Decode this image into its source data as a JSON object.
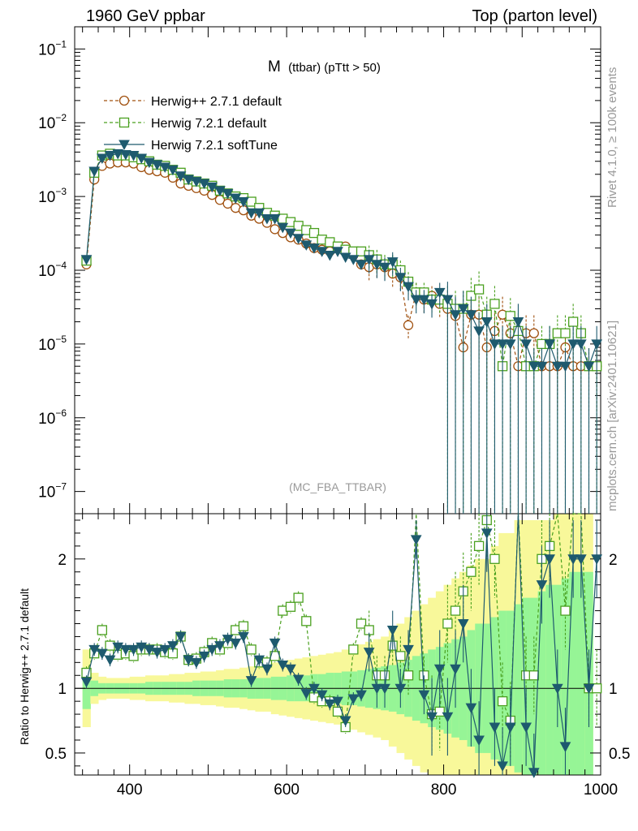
{
  "header": {
    "energy_label": "1960 GeV ppbar",
    "process_label": "Top (parton level)",
    "rivet_label": "Rivet 4.1.0, ≥ 100k events",
    "mcplots_label": "mcplots.cern.ch [arXiv:2401.10621]"
  },
  "colors": {
    "herwigpp": "#a0500f",
    "herwig721": "#4aa01f",
    "softtune": "#1e5a6e",
    "band_outer": "#f8f89a",
    "band_inner": "#96f596"
  },
  "chart_data": [
    {
      "type": "line",
      "panel": "main",
      "title_main": "M",
      "title_rest": "(ttbar) (pTtt > 50)",
      "watermark": "(MC_FBA_TTBAR)",
      "xlim": [
        330,
        1000
      ],
      "ylim": [
        5e-08,
        0.2
      ],
      "yscale": "log",
      "yticks": [
        {
          "value": 0.1,
          "mant": "10",
          "exp": "−1"
        },
        {
          "value": 0.01,
          "mant": "10",
          "exp": "−2"
        },
        {
          "value": 0.001,
          "mant": "10",
          "exp": "−3"
        },
        {
          "value": 0.0001,
          "mant": "10",
          "exp": "−4"
        },
        {
          "value": 1e-05,
          "mant": "10",
          "exp": "−5"
        },
        {
          "value": 1e-06,
          "mant": "10",
          "exp": "−6"
        },
        {
          "value": 1e-07,
          "mant": "10",
          "exp": "−7"
        }
      ],
      "x": [
        345,
        355,
        365,
        375,
        385,
        395,
        405,
        415,
        425,
        435,
        445,
        455,
        465,
        475,
        485,
        495,
        505,
        515,
        525,
        535,
        545,
        555,
        565,
        575,
        585,
        595,
        605,
        615,
        625,
        635,
        645,
        655,
        665,
        675,
        685,
        695,
        705,
        715,
        725,
        735,
        745,
        755,
        765,
        775,
        785,
        795,
        805,
        815,
        825,
        835,
        845,
        855,
        865,
        875,
        885,
        895,
        905,
        915,
        925,
        935,
        945,
        955,
        965,
        975,
        985,
        995
      ],
      "series": [
        {
          "name": "Herwig++ 2.7.1 default",
          "marker": "circle",
          "values": [
            0.00012,
            0.0017,
            0.0026,
            0.0028,
            0.0029,
            0.0029,
            0.0028,
            0.0025,
            0.0023,
            0.0022,
            0.0021,
            0.0018,
            0.0015,
            0.0014,
            0.0013,
            0.0012,
            0.00105,
            0.0009,
            0.0008,
            0.0007,
            0.00065,
            0.00055,
            0.0005,
            0.00044,
            0.00036,
            0.00032,
            0.00028,
            0.00026,
            0.00023,
            0.0002,
            0.00019,
            0.00018,
            0.0002,
            0.00021,
            0.00016,
            0.00012,
            0.00011,
            0.00012,
            0.00011,
            9e-05,
            8e-05,
            1.8e-05,
            5e-05,
            4e-05,
            4.5e-05,
            3.5e-05,
            3e-05,
            2.4e-05,
            9e-06,
            2.5e-05,
            2.5e-05,
            9e-06,
            1.5e-05,
            2.5e-05,
            1.4e-05,
            5e-06,
            1.4e-05,
            1.4e-05,
            5e-06,
            5e-06,
            5e-06,
            9e-06,
            5e-06,
            5e-06,
            5e-06,
            5e-06
          ]
        },
        {
          "name": "Herwig 7.2.1 default",
          "marker": "square",
          "values": [
            0.000135,
            0.0021,
            0.0036,
            0.0038,
            0.0036,
            0.0036,
            0.0034,
            0.0032,
            0.003,
            0.0027,
            0.0026,
            0.0023,
            0.0021,
            0.0017,
            0.0016,
            0.0015,
            0.0014,
            0.0012,
            0.0011,
            0.001,
            0.00095,
            0.00085,
            0.0007,
            0.0006,
            0.00055,
            0.0005,
            0.00045,
            0.0004,
            0.00035,
            0.00032,
            0.00026,
            0.00024,
            0.00021,
            0.00019,
            0.00018,
            0.00018,
            0.00016,
            0.00014,
            0.00012,
            0.00012,
            0.0001,
            7e-05,
            5e-05,
            5e-05,
            4e-05,
            4e-05,
            3.5e-05,
            3e-05,
            3e-05,
            4.5e-05,
            5.5e-05,
            2.5e-05,
            3.5e-05,
            5e-06,
            2.4e-05,
            1.5e-05,
            5e-06,
            5e-06,
            1e-05,
            1e-05,
            1.4e-05,
            1.4e-05,
            2e-05,
            1.4e-05,
            5e-06,
            5e-06
          ]
        },
        {
          "name": "Herwig 7.2.1 softTune",
          "marker": "triangle",
          "values": [
            0.00014,
            0.0022,
            0.0033,
            0.0036,
            0.0038,
            0.0037,
            0.0036,
            0.0033,
            0.0029,
            0.0027,
            0.0025,
            0.0023,
            0.0019,
            0.0017,
            0.0016,
            0.0015,
            0.00135,
            0.0012,
            0.0011,
            0.00095,
            0.00085,
            0.0006,
            0.0006,
            0.0005,
            0.0005,
            0.00038,
            0.00032,
            0.00027,
            0.00022,
            0.0002,
            0.00018,
            0.00016,
            0.00018,
            0.00015,
            0.00014,
            0.00012,
            0.00014,
            0.00012,
            0.00011,
            0.00013,
            8e-05,
            6e-05,
            4e-05,
            4e-05,
            3.5e-05,
            5e-05,
            4e-05,
            2.5e-05,
            3e-05,
            2.5e-05,
            1.5e-05,
            2e-05,
            1e-05,
            1e-05,
            1e-05,
            2e-05,
            1e-05,
            5e-06,
            5e-06,
            1e-05,
            5e-06,
            5e-06,
            1e-05,
            1e-05,
            5e-06,
            1e-05
          ]
        }
      ]
    },
    {
      "type": "line",
      "panel": "ratio",
      "ylabel": "Ratio to Herwig++ 2.7.1 default",
      "xlim": [
        330,
        1000
      ],
      "ylim": [
        0.33,
        2.35
      ],
      "xticks": [
        400,
        600,
        800,
        1000
      ],
      "yticks": [
        0.5,
        1,
        2
      ],
      "ytick_labels": [
        "0.5",
        "1",
        "2"
      ],
      "x": [
        345,
        355,
        365,
        375,
        385,
        395,
        405,
        415,
        425,
        435,
        445,
        455,
        465,
        475,
        485,
        495,
        505,
        515,
        525,
        535,
        545,
        555,
        565,
        575,
        585,
        595,
        605,
        615,
        625,
        635,
        645,
        655,
        665,
        675,
        685,
        695,
        705,
        715,
        725,
        735,
        745,
        755,
        765,
        775,
        785,
        795,
        805,
        815,
        825,
        835,
        845,
        855,
        865,
        875,
        885,
        895,
        905,
        915,
        925,
        935,
        945,
        955,
        965,
        975,
        985,
        995
      ],
      "band_inner_halfwidth": [
        0.16,
        0.06,
        0.04,
        0.04,
        0.04,
        0.04,
        0.04,
        0.04,
        0.05,
        0.05,
        0.05,
        0.05,
        0.05,
        0.05,
        0.06,
        0.06,
        0.06,
        0.06,
        0.07,
        0.07,
        0.07,
        0.08,
        0.08,
        0.08,
        0.09,
        0.09,
        0.1,
        0.1,
        0.1,
        0.11,
        0.11,
        0.12,
        0.12,
        0.13,
        0.13,
        0.14,
        0.15,
        0.16,
        0.17,
        0.18,
        0.2,
        0.22,
        0.25,
        0.27,
        0.3,
        0.32,
        0.35,
        0.38,
        0.4,
        0.45,
        0.5,
        0.5,
        0.55,
        0.6,
        0.6,
        0.65,
        0.7,
        0.7,
        0.75,
        0.8,
        0.8,
        0.85,
        0.9,
        0.9,
        0.9,
        0.0
      ],
      "band_outer_halfwidth": [
        0.3,
        0.12,
        0.09,
        0.08,
        0.08,
        0.08,
        0.09,
        0.09,
        0.1,
        0.1,
        0.1,
        0.11,
        0.11,
        0.12,
        0.12,
        0.13,
        0.13,
        0.14,
        0.15,
        0.15,
        0.16,
        0.17,
        0.18,
        0.18,
        0.2,
        0.21,
        0.22,
        0.23,
        0.24,
        0.25,
        0.26,
        0.27,
        0.28,
        0.3,
        0.32,
        0.34,
        0.36,
        0.38,
        0.4,
        0.45,
        0.5,
        0.55,
        0.6,
        0.65,
        0.7,
        0.75,
        0.8,
        0.85,
        0.9,
        0.95,
        1.0,
        1.0,
        1.1,
        1.2,
        1.2,
        1.3,
        1.3,
        1.3,
        1.3,
        1.3,
        1.4,
        1.4,
        1.4,
        1.4,
        1.4,
        0.0
      ],
      "series": [
        {
          "name": "Herwig 7.2.1 default",
          "marker": "square",
          "values": [
            1.12,
            1.27,
            1.45,
            1.33,
            1.26,
            1.27,
            1.25,
            1.3,
            1.3,
            1.3,
            1.28,
            1.27,
            1.4,
            1.22,
            1.23,
            1.28,
            1.35,
            1.3,
            1.35,
            1.45,
            1.48,
            1.3,
            1.2,
            1.2,
            1.25,
            1.6,
            1.63,
            1.7,
            1.52,
            0.93,
            0.9,
            0.9,
            0.82,
            0.7,
            1.3,
            1.5,
            1.45,
            1.1,
            1.1,
            1.33,
            1.25,
            1.1,
            2.6,
            1.1,
            0.8,
            0.82,
            1.5,
            1.6,
            1.75,
            1.9,
            2.1,
            2.3,
            2.0,
            0.9,
            0.75,
            2.8,
            1.1,
            1.1,
            2.0,
            2.1,
            2.8,
            1.6,
            4.0,
            2.8,
            1.0,
            1.0
          ]
        },
        {
          "name": "Herwig 7.2.1 softTune",
          "marker": "triangle",
          "values": [
            1.05,
            1.3,
            1.27,
            1.22,
            1.32,
            1.3,
            1.3,
            1.32,
            1.3,
            1.28,
            1.3,
            1.33,
            1.4,
            1.22,
            1.2,
            1.25,
            1.3,
            1.33,
            1.38,
            1.35,
            1.4,
            1.06,
            1.22,
            1.15,
            1.35,
            1.18,
            1.15,
            1.07,
            0.96,
            1.0,
            0.95,
            0.88,
            0.9,
            0.75,
            0.92,
            0.95,
            1.28,
            1.0,
            1.0,
            1.45,
            1.0,
            1.3,
            2.15,
            0.95,
            0.78,
            1.15,
            0.78,
            1.15,
            1.5,
            0.85,
            0.6,
            2.2,
            0.7,
            0.4,
            0.7,
            4.0,
            0.7,
            0.35,
            1.8,
            2.0,
            1.0,
            0.55,
            2.0,
            2.0,
            1.0,
            2.0
          ]
        }
      ]
    }
  ]
}
